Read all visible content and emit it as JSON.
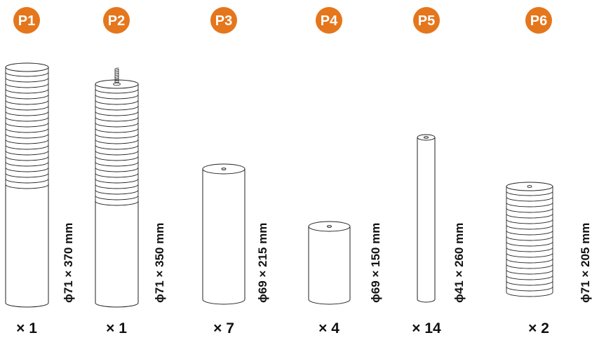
{
  "colors": {
    "badge": "#e5761c",
    "stroke": "#222222",
    "text": "#111111"
  },
  "parts": [
    {
      "id": "P1",
      "label": "P1",
      "dimension": "ϕ71 × 370 mm",
      "quantity": "× 1",
      "style": "threaded-top"
    },
    {
      "id": "P2",
      "label": "P2",
      "dimension": "ϕ71 × 350 mm",
      "quantity": "× 1",
      "style": "threaded-top-bolt"
    },
    {
      "id": "P3",
      "label": "P3",
      "dimension": "ϕ69 × 215 mm",
      "quantity": "× 7",
      "style": "plain-hole"
    },
    {
      "id": "P4",
      "label": "P4",
      "dimension": "ϕ69 × 150 mm",
      "quantity": "× 4",
      "style": "plain-hole"
    },
    {
      "id": "P5",
      "label": "P5",
      "dimension": "ϕ41 × 260 mm",
      "quantity": "× 14",
      "style": "plain-hole"
    },
    {
      "id": "P6",
      "label": "P6",
      "dimension": "ϕ71 × 205 mm",
      "quantity": "× 2",
      "style": "fully-threaded"
    }
  ]
}
